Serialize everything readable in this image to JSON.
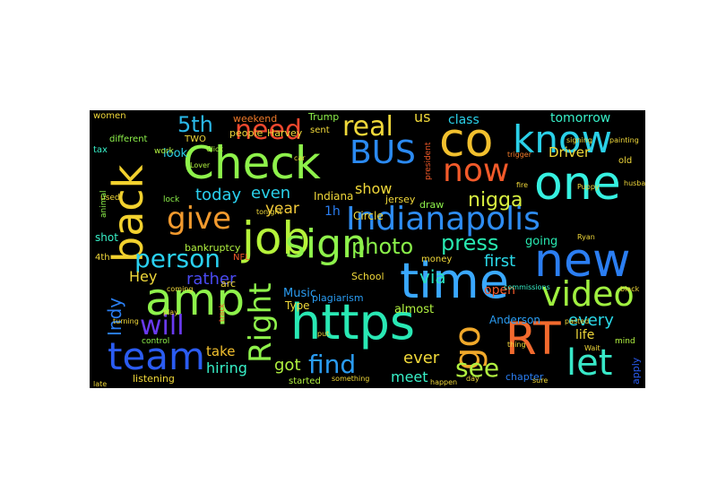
{
  "words": [
    {
      "text": "Check",
      "color": "#8ef24b"
    },
    {
      "text": "back",
      "color": "#f2d12e"
    },
    {
      "text": "job",
      "color": "#b5f23a"
    },
    {
      "text": "amp",
      "color": "#8ef24b"
    },
    {
      "text": "https",
      "color": "#29e8b4"
    },
    {
      "text": "time",
      "color": "#3aa8ff"
    },
    {
      "text": "new",
      "color": "#2b7ef2"
    },
    {
      "text": "co",
      "color": "#f2c02e"
    },
    {
      "text": "know",
      "color": "#2ad0e8"
    },
    {
      "text": "one",
      "color": "#36f0e0"
    },
    {
      "text": "RT",
      "color": "#f26a2e"
    },
    {
      "text": "let",
      "color": "#38e8c8"
    },
    {
      "text": "video",
      "color": "#a0f040"
    },
    {
      "text": "Indianapolis",
      "color": "#2e8cf2"
    },
    {
      "text": "sign",
      "color": "#8ef24b"
    },
    {
      "text": "team",
      "color": "#2b5cf2"
    },
    {
      "text": "go",
      "color": "#f0a82a"
    },
    {
      "text": "now",
      "color": "#f25a2a"
    },
    {
      "text": "BUS",
      "color": "#2b8af2"
    },
    {
      "text": "give",
      "color": "#f29a2e"
    },
    {
      "text": "need",
      "color": "#f2482e"
    },
    {
      "text": "5th",
      "color": "#2ab8e8"
    },
    {
      "text": "real",
      "color": "#f0d83a"
    },
    {
      "text": "person",
      "color": "#2ad0f0"
    },
    {
      "text": "will",
      "color": "#6a3af2"
    },
    {
      "text": "Right",
      "color": "#8ef24b"
    },
    {
      "text": "press",
      "color": "#28e8b0"
    },
    {
      "text": "photo",
      "color": "#8af04a"
    },
    {
      "text": "find",
      "color": "#2a9cf2"
    },
    {
      "text": "see",
      "color": "#b0f040"
    },
    {
      "text": "nigga",
      "color": "#d8f040"
    },
    {
      "text": "got",
      "color": "#b0f040"
    },
    {
      "text": "hiring",
      "color": "#38f0c8"
    },
    {
      "text": "take",
      "color": "#f2c02e"
    },
    {
      "text": "Indy",
      "color": "#2a7ef2"
    },
    {
      "text": "rather",
      "color": "#4a4af2"
    },
    {
      "text": "Hey",
      "color": "#f0d83a"
    },
    {
      "text": "today",
      "color": "#2ad0f0"
    },
    {
      "text": "even",
      "color": "#2ad0e8"
    },
    {
      "text": "year",
      "color": "#f0c83a"
    },
    {
      "text": "show",
      "color": "#f0d83a"
    },
    {
      "text": "via",
      "color": "#28e0c0"
    },
    {
      "text": "first",
      "color": "#2ad8e8"
    },
    {
      "text": "every",
      "color": "#2ad8e8"
    },
    {
      "text": "life",
      "color": "#f0d83a"
    },
    {
      "text": "ever",
      "color": "#f0d83a"
    },
    {
      "text": "meet",
      "color": "#38f0c8"
    },
    {
      "text": "us",
      "color": "#f0d83a"
    },
    {
      "text": "class",
      "color": "#2ad0e8"
    },
    {
      "text": "tomorrow",
      "color": "#38f0c8"
    },
    {
      "text": "Driver",
      "color": "#f0d83a"
    },
    {
      "text": "going",
      "color": "#28e8b0"
    },
    {
      "text": "open",
      "color": "#f25a2a"
    },
    {
      "text": "almost",
      "color": "#b0f040"
    },
    {
      "text": "Anderson",
      "color": "#2a9cf2"
    },
    {
      "text": "chapter",
      "color": "#2a7ef2"
    },
    {
      "text": "Music",
      "color": "#2a9cf2"
    },
    {
      "text": "plagiarism",
      "color": "#2a9cf2"
    },
    {
      "text": "Type",
      "color": "#f0d83a"
    },
    {
      "text": "School",
      "color": "#f0d83a"
    },
    {
      "text": "money",
      "color": "#f0d83a"
    },
    {
      "text": "Circle",
      "color": "#f0d83a"
    },
    {
      "text": "draw",
      "color": "#8ef24b"
    },
    {
      "text": "jersey",
      "color": "#f0d83a"
    },
    {
      "text": "Indiana",
      "color": "#f0d83a"
    },
    {
      "text": "1h",
      "color": "#2a7ef2"
    },
    {
      "text": "look",
      "color": "#2ad0e8"
    },
    {
      "text": "TWO",
      "color": "#f0d83a"
    },
    {
      "text": "bankruptcy",
      "color": "#b0f040"
    },
    {
      "text": "shot",
      "color": "#38f0c8"
    },
    {
      "text": "4th",
      "color": "#f0d83a"
    },
    {
      "text": "arc",
      "color": "#f0d83a"
    },
    {
      "text": "NFL",
      "color": "#f25a2a"
    },
    {
      "text": "people",
      "color": "#f0d83a"
    },
    {
      "text": "Harvey",
      "color": "#f0d83a"
    },
    {
      "text": "weekend",
      "color": "#f07a2a"
    },
    {
      "text": "Trump",
      "color": "#8ef24b"
    },
    {
      "text": "sent",
      "color": "#f0d83a"
    },
    {
      "text": "different",
      "color": "#8ef24b"
    },
    {
      "text": "women",
      "color": "#f0d83a"
    },
    {
      "text": "tax",
      "color": "#38f0c8"
    },
    {
      "text": "work",
      "color": "#b0f040"
    },
    {
      "text": "listening",
      "color": "#f0d83a"
    },
    {
      "text": "started",
      "color": "#b0f040"
    },
    {
      "text": "apply",
      "color": "#2a5cf2"
    },
    {
      "text": "mind",
      "color": "#b0f040"
    },
    {
      "text": "old",
      "color": "#f0d83a"
    },
    {
      "text": "signing",
      "color": "#f0d83a"
    },
    {
      "text": "painting",
      "color": "#f0d83a"
    },
    {
      "text": "Puppy",
      "color": "#f0d83a"
    },
    {
      "text": "Lover",
      "color": "#b0f040"
    },
    {
      "text": "Click",
      "color": "#b0f040"
    },
    {
      "text": "lock",
      "color": "#8ef24b"
    },
    {
      "text": "used",
      "color": "#f0d83a"
    },
    {
      "text": "commissions",
      "color": "#38f0c8"
    },
    {
      "text": "president",
      "color": "#f25a2a"
    },
    {
      "text": "trigger",
      "color": "#f07a2a"
    },
    {
      "text": "control",
      "color": "#8ef24b"
    },
    {
      "text": "track",
      "color": "#f25a2a"
    },
    {
      "text": "tonight",
      "color": "#f0d83a"
    },
    {
      "text": "something",
      "color": "#f0d83a"
    },
    {
      "text": "happen",
      "color": "#f0d83a"
    },
    {
      "text": "pasted",
      "color": "#f0d83a"
    },
    {
      "text": "Wait",
      "color": "#f0d83a"
    },
    {
      "text": "thing",
      "color": "#f0d83a"
    },
    {
      "text": "put",
      "color": "#f0d83a"
    },
    {
      "text": "late",
      "color": "#f0d83a"
    },
    {
      "text": "coming",
      "color": "#f0d83a"
    },
    {
      "text": "play",
      "color": "#f0d83a"
    },
    {
      "text": "turning",
      "color": "#f0d83a"
    },
    {
      "text": "animal",
      "color": "#8ef24b"
    },
    {
      "text": "sure",
      "color": "#f0d83a"
    },
    {
      "text": "day",
      "color": "#f0d83a"
    },
    {
      "text": "Ryan",
      "color": "#f0d83a"
    },
    {
      "text": "car",
      "color": "#f0d83a"
    },
    {
      "text": "fire",
      "color": "#f0d83a"
    },
    {
      "text": "husband",
      "color": "#f0d83a"
    },
    {
      "text": "black",
      "color": "#f0d83a"
    }
  ]
}
